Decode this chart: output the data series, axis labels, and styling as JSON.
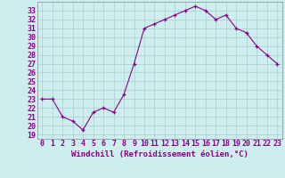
{
  "x": [
    0,
    1,
    2,
    3,
    4,
    5,
    6,
    7,
    8,
    9,
    10,
    11,
    12,
    13,
    14,
    15,
    16,
    17,
    18,
    19,
    20,
    21,
    22,
    23
  ],
  "y": [
    23,
    23,
    21,
    20.5,
    19.5,
    21.5,
    22,
    21.5,
    23.5,
    27,
    31,
    31.5,
    32,
    32.5,
    33,
    33.5,
    33,
    32,
    32.5,
    31,
    30.5,
    29,
    28,
    27
  ],
  "line_color": "#880088",
  "marker": "+",
  "bg_color": "#cceeee",
  "grid_color": "#aacccc",
  "xlabel": "Windchill (Refroidissement éolien,°C)",
  "xlabel_fontsize": 6.5,
  "tick_fontsize": 6.0,
  "ylabel_ticks": [
    19,
    20,
    21,
    22,
    23,
    24,
    25,
    26,
    27,
    28,
    29,
    30,
    31,
    32,
    33
  ],
  "xticks": [
    0,
    1,
    2,
    3,
    4,
    5,
    6,
    7,
    8,
    9,
    10,
    11,
    12,
    13,
    14,
    15,
    16,
    17,
    18,
    19,
    20,
    21,
    22,
    23
  ],
  "ylim": [
    18.5,
    34.0
  ],
  "xlim": [
    -0.5,
    23.5
  ]
}
